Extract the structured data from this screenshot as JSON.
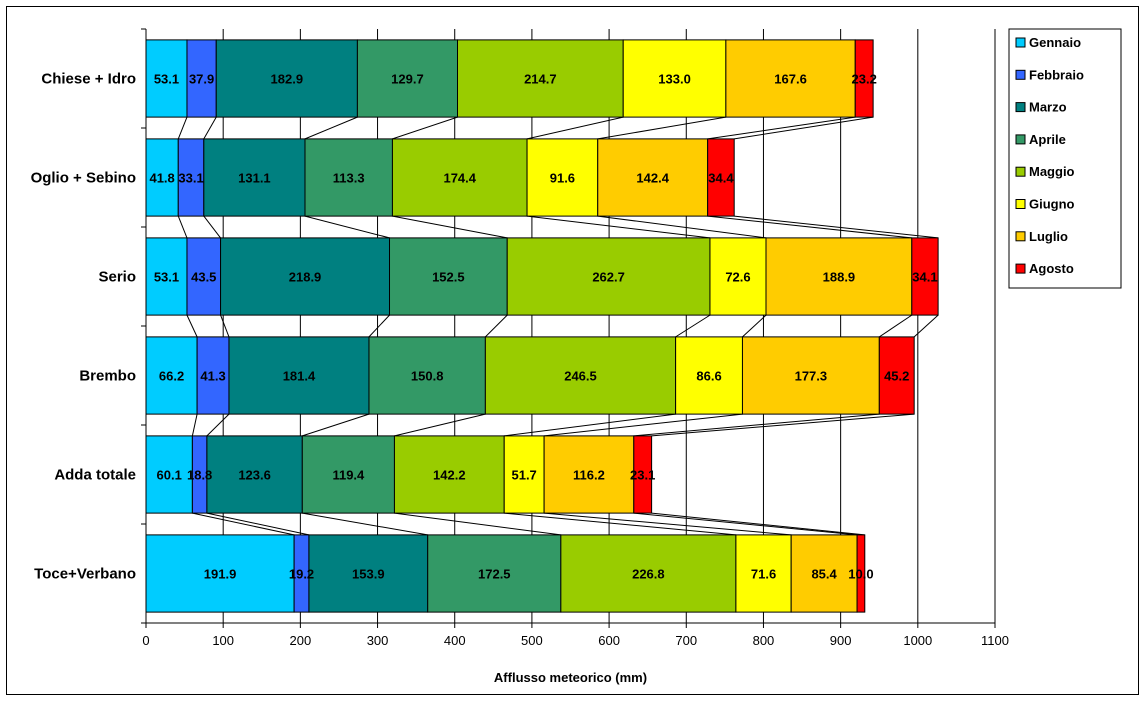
{
  "chart_data": {
    "type": "bar",
    "orientation": "horizontal",
    "stacked": true,
    "categories": [
      "Chiese + Idro",
      "Oglio + Sebino",
      "Serio",
      "Brembo",
      "Adda  totale",
      "Toce+Verbano"
    ],
    "series": [
      {
        "name": "Gennaio",
        "color": "#00ccff",
        "values": [
          53.1,
          41.8,
          53.1,
          66.2,
          60.1,
          191.9
        ],
        "labels": [
          "53.1",
          "41.8",
          "53.1",
          "66.2",
          "60.1",
          "191.9"
        ]
      },
      {
        "name": "Febbraio",
        "color": "#3366ff",
        "values": [
          37.9,
          33.1,
          43.5,
          41.3,
          18.8,
          19.2
        ],
        "labels": [
          "37.9",
          "33.1",
          "43.5",
          "41.3",
          "18.8",
          "19.2"
        ]
      },
      {
        "name": "Marzo",
        "color": "#008080",
        "values": [
          182.9,
          131.1,
          218.9,
          181.4,
          123.6,
          153.9
        ],
        "labels": [
          "182.9",
          "131.1",
          "218.9",
          "181.4",
          "123.6",
          "153.9"
        ]
      },
      {
        "name": "Aprile",
        "color": "#339966",
        "values": [
          129.7,
          113.3,
          152.5,
          150.8,
          119.4,
          172.5
        ],
        "labels": [
          "129.7",
          "113.3",
          "152.5",
          "150.8",
          "119.4",
          "172.5"
        ]
      },
      {
        "name": "Maggio",
        "color": "#99cc00",
        "values": [
          214.7,
          174.4,
          262.7,
          246.5,
          142.2,
          226.8
        ],
        "labels": [
          "214.7",
          "174.4",
          "262.7",
          "246.5",
          "142.2",
          "226.8"
        ]
      },
      {
        "name": "Giugno",
        "color": "#ffff00",
        "values": [
          133.0,
          91.6,
          72.6,
          86.6,
          51.7,
          71.6
        ],
        "labels": [
          "133.0",
          "91.6",
          "72.6",
          "86.6",
          "51.7",
          "71.6"
        ]
      },
      {
        "name": "Luglio",
        "color": "#ffcc00",
        "values": [
          167.6,
          142.4,
          188.9,
          177.3,
          116.2,
          85.4
        ],
        "labels": [
          "167.6",
          "142.4",
          "188.9",
          "177.3",
          "116.2",
          "85.4"
        ]
      },
      {
        "name": "Agosto",
        "color": "#ff0000",
        "values": [
          23.2,
          34.4,
          34.1,
          45.2,
          23.1,
          10.0
        ],
        "labels": [
          "23.2",
          "34.4",
          "34.1",
          "45.2",
          "23.1",
          "10.0"
        ]
      }
    ],
    "xlabel": "Afflusso meteorico (mm)",
    "xlim": [
      0,
      1100
    ],
    "xticks": [
      "0",
      "100",
      "200",
      "300",
      "400",
      "500",
      "600",
      "700",
      "800",
      "900",
      "1000",
      "1100"
    ],
    "grid": "vertical",
    "series_lines": true,
    "legend_position": "right"
  }
}
